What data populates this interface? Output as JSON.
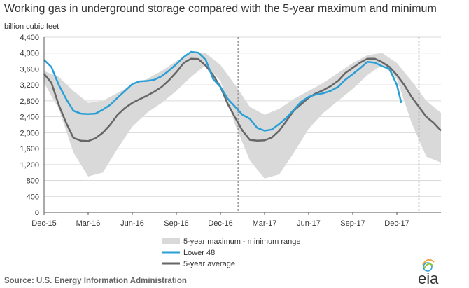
{
  "title": "Working gas in underground  storage compared with the 5-year maximum and minimum",
  "source": "Source:  U.S. Energy Information Administration",
  "logo": "eia",
  "colors": {
    "range": "#d9d9d9",
    "lower48": "#2a9fd6",
    "avg": "#666666",
    "grid": "#d9d9d9",
    "divider": "#999999"
  },
  "chart_data": {
    "type": "line",
    "ylabel": "billion cubic feet",
    "ylim": [
      0,
      4400
    ],
    "yticks": [
      0,
      400,
      800,
      1200,
      1600,
      2000,
      2400,
      2800,
      3200,
      3600,
      4000,
      4400
    ],
    "ytick_labels": [
      "0",
      "400",
      "800",
      "1,200",
      "1,600",
      "2,000",
      "2,400",
      "2,800",
      "3,200",
      "3,600",
      "4,000",
      "4,400"
    ],
    "xlim": [
      0,
      27
    ],
    "xticks": [
      0,
      3,
      6,
      9,
      12,
      15,
      18,
      21,
      24
    ],
    "xtick_labels": [
      "Dec-15",
      "Mar-16",
      "Jun-16",
      "Sep-16",
      "Dec-16",
      "Mar-17",
      "Jun-17",
      "Sep-17",
      "Dec-17"
    ],
    "dividers": [
      13.2,
      25.5
    ],
    "grid": true,
    "legend_position": "bottom",
    "series": [
      {
        "name": "5-year maximum - minimum range",
        "kind": "range",
        "x": [
          0,
          1,
          2,
          3,
          4,
          5,
          6,
          7,
          8,
          9,
          10,
          11,
          12,
          13,
          14,
          15,
          16,
          17,
          18,
          19,
          20,
          21,
          22,
          23,
          24,
          25,
          26,
          27
        ],
        "low": [
          3250,
          2600,
          1500,
          900,
          1000,
          1600,
          2150,
          2500,
          2750,
          3050,
          3400,
          3700,
          3300,
          2200,
          1300,
          850,
          950,
          1500,
          2100,
          2500,
          2800,
          3100,
          3450,
          3700,
          3350,
          2250,
          1400,
          1250
        ],
        "high": [
          3550,
          3400,
          3050,
          2750,
          2800,
          3000,
          3200,
          3350,
          3550,
          3800,
          4000,
          4000,
          3700,
          3200,
          2650,
          2450,
          2600,
          2850,
          3050,
          3250,
          3500,
          3750,
          3950,
          4000,
          3750,
          3300,
          2800,
          2500
        ]
      },
      {
        "name": "Lower 48",
        "kind": "line",
        "x": [
          0,
          0.5,
          1,
          1.5,
          2,
          2.5,
          3,
          3.5,
          4,
          4.5,
          5,
          5.5,
          6,
          6.5,
          7,
          7.5,
          8,
          8.5,
          9,
          9.5,
          10,
          10.5,
          11,
          11.5,
          12,
          12.5,
          13,
          13.5,
          14,
          14.5,
          15,
          15.5,
          16,
          16.5,
          17,
          17.5,
          18,
          18.5,
          19,
          19.5,
          20,
          20.5,
          21,
          21.5,
          22,
          22.5,
          23,
          23.5,
          24,
          24.3
        ],
        "y": [
          3830,
          3650,
          3200,
          2850,
          2550,
          2480,
          2470,
          2480,
          2580,
          2700,
          2880,
          3050,
          3220,
          3290,
          3300,
          3330,
          3420,
          3560,
          3720,
          3900,
          4030,
          4010,
          3830,
          3350,
          3150,
          2850,
          2650,
          2450,
          2350,
          2120,
          2050,
          2080,
          2220,
          2380,
          2580,
          2780,
          2900,
          2960,
          2990,
          3050,
          3150,
          3330,
          3470,
          3620,
          3780,
          3760,
          3670,
          3600,
          3200,
          2750
        ]
      },
      {
        "name": "5-year average",
        "kind": "line",
        "x": [
          0,
          0.5,
          1,
          1.5,
          2,
          2.5,
          3,
          3.5,
          4,
          4.5,
          5,
          5.5,
          6,
          6.5,
          7,
          7.5,
          8,
          8.5,
          9,
          9.5,
          10,
          10.5,
          11,
          11.5,
          12,
          12.5,
          13,
          13.5,
          14,
          14.5,
          15,
          15.5,
          16,
          16.5,
          17,
          17.5,
          18,
          18.5,
          19,
          19.5,
          20,
          20.5,
          21,
          21.5,
          22,
          22.5,
          23,
          23.5,
          24,
          24.5,
          25,
          25.5,
          26,
          26.5,
          27
        ],
        "y": [
          3480,
          3250,
          2700,
          2250,
          1870,
          1800,
          1790,
          1860,
          2000,
          2200,
          2450,
          2620,
          2750,
          2840,
          2930,
          3030,
          3150,
          3320,
          3520,
          3750,
          3860,
          3850,
          3680,
          3450,
          3150,
          2720,
          2380,
          2050,
          1820,
          1800,
          1810,
          1880,
          2050,
          2300,
          2560,
          2720,
          2880,
          2990,
          3070,
          3170,
          3300,
          3500,
          3630,
          3760,
          3860,
          3860,
          3770,
          3650,
          3450,
          3200,
          2900,
          2650,
          2400,
          2250,
          2050
        ]
      }
    ]
  }
}
